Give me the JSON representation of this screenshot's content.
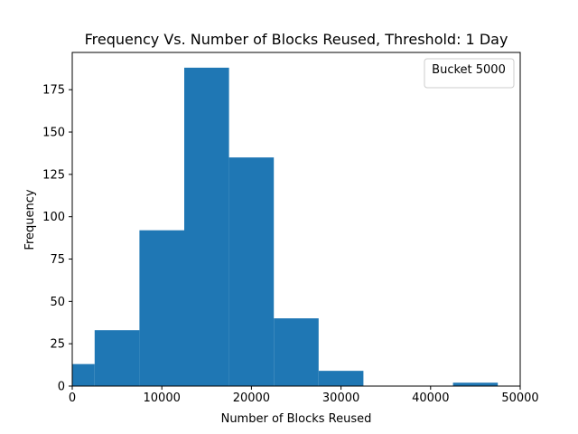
{
  "chart_data": {
    "type": "bar",
    "title": "Frequency Vs. Number of Blocks Reused, Threshold: 1 Day",
    "xlabel": "Number of Blocks Reused",
    "ylabel": "Frequency",
    "xlim": [
      0,
      50000
    ],
    "ylim": [
      0,
      197
    ],
    "xticks": [
      0,
      10000,
      20000,
      30000,
      40000,
      50000
    ],
    "xtick_labels": [
      "0",
      "10000",
      "20000",
      "30000",
      "40000",
      "50000"
    ],
    "yticks": [
      0,
      25,
      50,
      75,
      100,
      125,
      150,
      175
    ],
    "ytick_labels": [
      "0",
      "25",
      "50",
      "75",
      "100",
      "125",
      "150",
      "175"
    ],
    "legend": {
      "label": "Bucket 5000",
      "placement": "top-right"
    },
    "grid": false,
    "bar_color": "#1f77b4",
    "bins": [
      {
        "x0": 0,
        "x1": 2500,
        "value": 13
      },
      {
        "x0": 2500,
        "x1": 7500,
        "value": 33
      },
      {
        "x0": 7500,
        "x1": 12500,
        "value": 92
      },
      {
        "x0": 12500,
        "x1": 17500,
        "value": 188
      },
      {
        "x0": 17500,
        "x1": 22500,
        "value": 135
      },
      {
        "x0": 22500,
        "x1": 27500,
        "value": 40
      },
      {
        "x0": 27500,
        "x1": 32500,
        "value": 9
      },
      {
        "x0": 32500,
        "x1": 37500,
        "value": 0
      },
      {
        "x0": 37500,
        "x1": 42500,
        "value": 0
      },
      {
        "x0": 42500,
        "x1": 47500,
        "value": 2
      }
    ]
  }
}
